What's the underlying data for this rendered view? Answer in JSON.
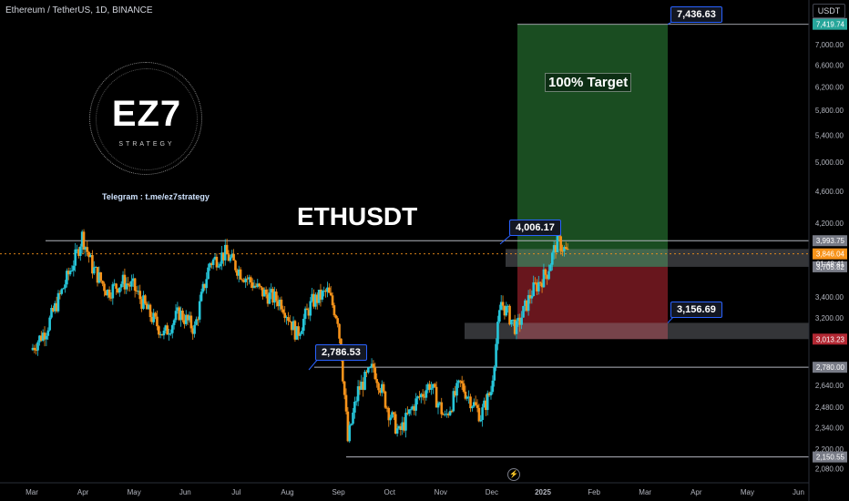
{
  "header": {
    "symbol_line": "Ethereum / TetherUS, 1D, BINANCE",
    "currency": "USDT"
  },
  "logo": {
    "text": "EZ7",
    "subtext": "STRATEGY"
  },
  "telegram": "Telegram : t.me/ez7strategy",
  "main_title": "ETHUSDT",
  "target_label": "100% Target",
  "callouts": {
    "target_top": "7,436.63",
    "local_high": "4,006.17",
    "support_low": "3,156.69",
    "summer_high": "2,786.53"
  },
  "footer_icon": "lightning-icon",
  "chart_data": {
    "type": "candlestick",
    "title": "",
    "y_scale": "log",
    "ylim": [
      2050,
      7550
    ],
    "y_ticks": [
      {
        "v": 7000,
        "label": "7,000.00"
      },
      {
        "v": 6600,
        "label": "6,600.00"
      },
      {
        "v": 6200,
        "label": "6,200.00"
      },
      {
        "v": 5800,
        "label": "5,800.00"
      },
      {
        "v": 5400,
        "label": "5,400.00"
      },
      {
        "v": 5000,
        "label": "5,000.00"
      },
      {
        "v": 4600,
        "label": "4,600.00"
      },
      {
        "v": 4200,
        "label": "4,200.00"
      },
      {
        "v": 3400,
        "label": "3,400.00"
      },
      {
        "v": 3200,
        "label": "3,200.00"
      },
      {
        "v": 2640,
        "label": "2,640.00"
      },
      {
        "v": 2480,
        "label": "2,480.00"
      },
      {
        "v": 2340,
        "label": "2,340.00"
      },
      {
        "v": 2200,
        "label": "2,200.00"
      },
      {
        "v": 2080,
        "label": "2,080.00"
      }
    ],
    "x_ticks": [
      "Mar",
      "Apr",
      "May",
      "Jun",
      "Jul",
      "Aug",
      "Sep",
      "Oct",
      "Nov",
      "Dec",
      "2025",
      "Feb",
      "Mar",
      "Apr",
      "May",
      "Jun"
    ],
    "price_labels": [
      {
        "v": 7436.63,
        "label": "7,436.63",
        "color": "#787b86"
      },
      {
        "v": 7419.74,
        "label": "7,419.74",
        "color": "#26a69a"
      },
      {
        "v": 3993.75,
        "label": "3,993.75",
        "color": "#787b86"
      },
      {
        "v": 3846.04,
        "label": "3,846.04",
        "color": "#f7931a"
      },
      {
        "v": 3705.82,
        "label": "3,705.82",
        "color": "#787b86"
      },
      {
        "v": 3013.23,
        "label": "3,013.23",
        "color": "#b22833"
      },
      {
        "v": 2780.0,
        "label": "2,780.00",
        "color": "#787b86"
      },
      {
        "v": 2150.55,
        "label": "2,150.55",
        "color": "#787b86"
      }
    ],
    "countdown": "01:48:41",
    "horizontal_levels": [
      3993.75,
      2780.0,
      2150.55
    ],
    "current_price": 3846.04,
    "zones": {
      "target": {
        "from": 3705.82,
        "to": 7419.74
      },
      "stop": {
        "from": 3013.23,
        "to": 3705.82
      },
      "gray_upper": {
        "from": 3705.82,
        "to": 3900
      },
      "gray_lower": {
        "from": 3013.23,
        "to": 3156.69
      }
    },
    "series": [
      {
        "name": "",
        "path_points": [
          {
            "month": 0.0,
            "v": 2920
          },
          {
            "month": 0.3,
            "v": 3100
          },
          {
            "month": 0.6,
            "v": 3450
          },
          {
            "month": 0.9,
            "v": 3850
          },
          {
            "month": 1.0,
            "v": 4050
          },
          {
            "month": 1.2,
            "v": 3700
          },
          {
            "month": 1.5,
            "v": 3450
          },
          {
            "month": 1.8,
            "v": 3550
          },
          {
            "month": 2.0,
            "v": 3500
          },
          {
            "month": 2.3,
            "v": 3250
          },
          {
            "month": 2.6,
            "v": 3050
          },
          {
            "month": 2.9,
            "v": 3250
          },
          {
            "month": 3.2,
            "v": 3100
          },
          {
            "month": 3.5,
            "v": 3750
          },
          {
            "month": 3.8,
            "v": 3850
          },
          {
            "month": 4.1,
            "v": 3650
          },
          {
            "month": 4.5,
            "v": 3450
          },
          {
            "month": 4.9,
            "v": 3350
          },
          {
            "month": 5.2,
            "v": 3050
          },
          {
            "month": 5.5,
            "v": 3350
          },
          {
            "month": 5.8,
            "v": 3450
          },
          {
            "month": 6.0,
            "v": 3200
          },
          {
            "month": 6.2,
            "v": 2250
          },
          {
            "month": 6.4,
            "v": 2600
          },
          {
            "month": 6.7,
            "v": 2780
          },
          {
            "month": 7.0,
            "v": 2450
          },
          {
            "month": 7.2,
            "v": 2300
          },
          {
            "month": 7.5,
            "v": 2500
          },
          {
            "month": 7.8,
            "v": 2650
          },
          {
            "month": 8.1,
            "v": 2400
          },
          {
            "month": 8.4,
            "v": 2650
          },
          {
            "month": 8.8,
            "v": 2420
          },
          {
            "month": 9.0,
            "v": 2600
          },
          {
            "month": 9.2,
            "v": 3350
          },
          {
            "month": 9.5,
            "v": 3100
          },
          {
            "month": 9.8,
            "v": 3450
          },
          {
            "month": 10.1,
            "v": 3650
          },
          {
            "month": 10.3,
            "v": 4000
          },
          {
            "month": 10.5,
            "v": 3846
          }
        ]
      }
    ]
  }
}
